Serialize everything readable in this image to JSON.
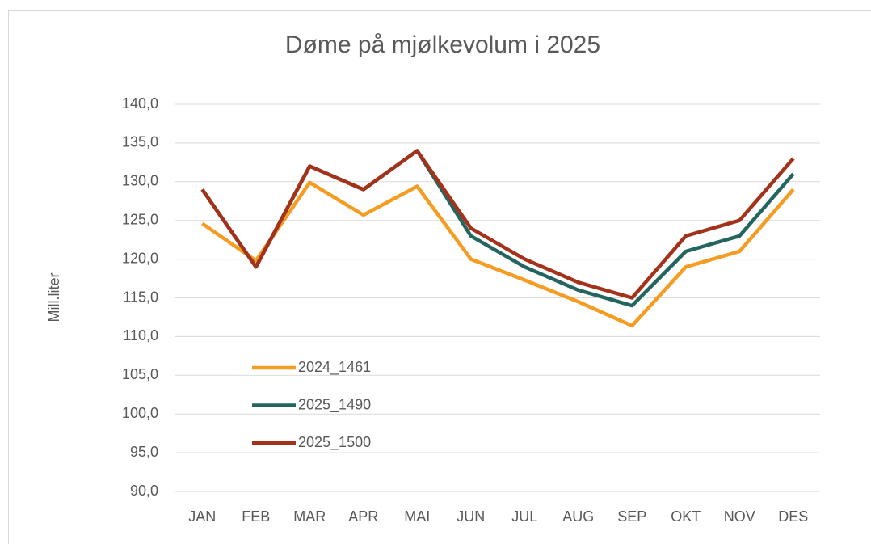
{
  "chart_data": {
    "type": "line",
    "title": "Døme på mjølkevolum i 2025",
    "y_label": "Mill.liter",
    "categories": [
      "JAN",
      "FEB",
      "MAR",
      "APR",
      "MAI",
      "JUN",
      "JUL",
      "AUG",
      "SEP",
      "OKT",
      "NOV",
      "DES"
    ],
    "series": [
      {
        "name": "2024_1461",
        "color": "#f59c23",
        "values": [
          124.6,
          119.8,
          129.9,
          125.7,
          129.4,
          120.0,
          117.3,
          114.5,
          111.4,
          119.0,
          121.0,
          129.0
        ]
      },
      {
        "name": "2025_1490",
        "color": "#24665f",
        "values": [
          129,
          119,
          132,
          129,
          134,
          123,
          119,
          116,
          114,
          121,
          123,
          131
        ]
      },
      {
        "name": "2025_1500",
        "color": "#a4321a",
        "values": [
          129,
          119,
          132,
          129,
          134,
          124,
          120,
          117,
          115,
          123,
          125,
          133
        ]
      }
    ],
    "ylim": [
      90,
      140
    ],
    "yticks": [
      {
        "value": 90,
        "label": "90,0"
      },
      {
        "value": 95,
        "label": "95,0"
      },
      {
        "value": 100,
        "label": "100,0"
      },
      {
        "value": 105,
        "label": "105,0"
      },
      {
        "value": 110,
        "label": "110,0"
      },
      {
        "value": 115,
        "label": "115,0"
      },
      {
        "value": 120,
        "label": "120,0"
      },
      {
        "value": 125,
        "label": "125,0"
      },
      {
        "value": 130,
        "label": "130,0"
      },
      {
        "value": 135,
        "label": "135,0"
      },
      {
        "value": 140,
        "label": "140,0"
      }
    ],
    "grid": true,
    "legend": "lower-left"
  }
}
